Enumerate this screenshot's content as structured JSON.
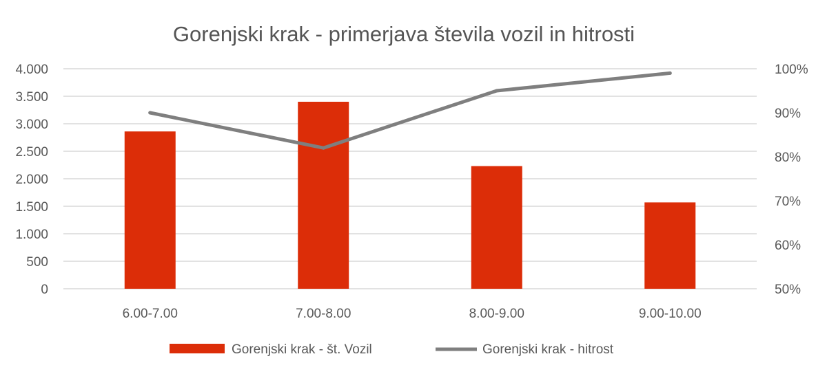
{
  "chart_data": {
    "type": "bar",
    "title": "Gorenjski krak - primerjava števila vozil in hitrosti",
    "categories": [
      "6.00-7.00",
      "7.00-8.00",
      "8.00-9.00",
      "9.00-10.00"
    ],
    "series": [
      {
        "name": "Gorenjski krak - št. Vozil",
        "type": "bar",
        "axis": "left",
        "color": "#dc2d08",
        "values": [
          2860,
          3400,
          2230,
          1570
        ]
      },
      {
        "name": "Gorenjski krak - hitrost",
        "type": "line",
        "axis": "right",
        "color": "#7f7f7f",
        "values": [
          0.9,
          0.82,
          0.95,
          0.99
        ]
      }
    ],
    "y_left": {
      "min": 0,
      "max": 4000,
      "ticks": [
        0,
        500,
        1000,
        1500,
        2000,
        2500,
        3000,
        3500,
        4000
      ],
      "tick_labels": [
        "0",
        "500",
        "1.000",
        "1.500",
        "2.000",
        "2.500",
        "3.000",
        "3.500",
        "4.000"
      ]
    },
    "y_right": {
      "min": 0.5,
      "max": 1.0,
      "ticks": [
        0.5,
        0.6,
        0.7,
        0.8,
        0.9,
        1.0
      ],
      "tick_labels": [
        "50%",
        "60%",
        "70%",
        "80%",
        "90%",
        "100%"
      ]
    },
    "grid": true,
    "legend_position": "bottom",
    "gridline_color": "#d9d9d9"
  }
}
